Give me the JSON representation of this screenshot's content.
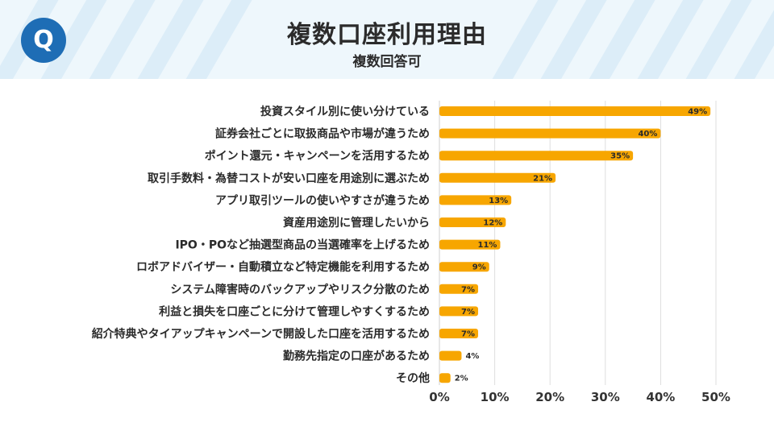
{
  "header": {
    "logo_letter": "Q",
    "title": "複数口座利用理由",
    "subtitle": "複数回答可"
  },
  "colors": {
    "bar": "#f7a600",
    "header_band": "#eef7fc",
    "logo": "#1e6db5",
    "grid": "#dedede"
  },
  "chart_data": {
    "type": "bar",
    "orientation": "horizontal",
    "title": "複数口座利用理由",
    "subtitle": "複数回答可",
    "xlabel": "",
    "ylabel": "",
    "xlim": [
      0,
      50
    ],
    "ticks": [
      "0%",
      "10%",
      "20%",
      "30%",
      "40%",
      "50%"
    ],
    "tick_values": [
      0,
      10,
      20,
      30,
      40,
      50
    ],
    "grid": true,
    "categories": [
      "投資スタイル別に使い分けている",
      "証券会社ごとに取扱商品や市場が違うため",
      "ポイント還元・キャンペーンを活用するため",
      "取引手数料・為替コストが安い口座を用途別に選ぶため",
      "アプリ取引ツールの使いやすさが違うため",
      "資産用途別に管理したいから",
      "IPO・POなど抽選型商品の当選確率を上げるため",
      "ロボアドバイザー・自動積立など特定機能を利用するため",
      "システム障害時のバックアップやリスク分散のため",
      "利益と損失を口座ごとに分けて管理しやすくするため",
      "紹介特典やタイアップキャンペーンで開設した口座を活用するため",
      "勤務先指定の口座があるため",
      "その他"
    ],
    "values": [
      49,
      40,
      35,
      21,
      13,
      12,
      11,
      9,
      7,
      7,
      7,
      4,
      2
    ],
    "value_labels": [
      "49%",
      "40%",
      "35%",
      "21%",
      "13%",
      "12%",
      "11%",
      "9%",
      "7%",
      "7%",
      "7%",
      "4%",
      "2%"
    ]
  }
}
